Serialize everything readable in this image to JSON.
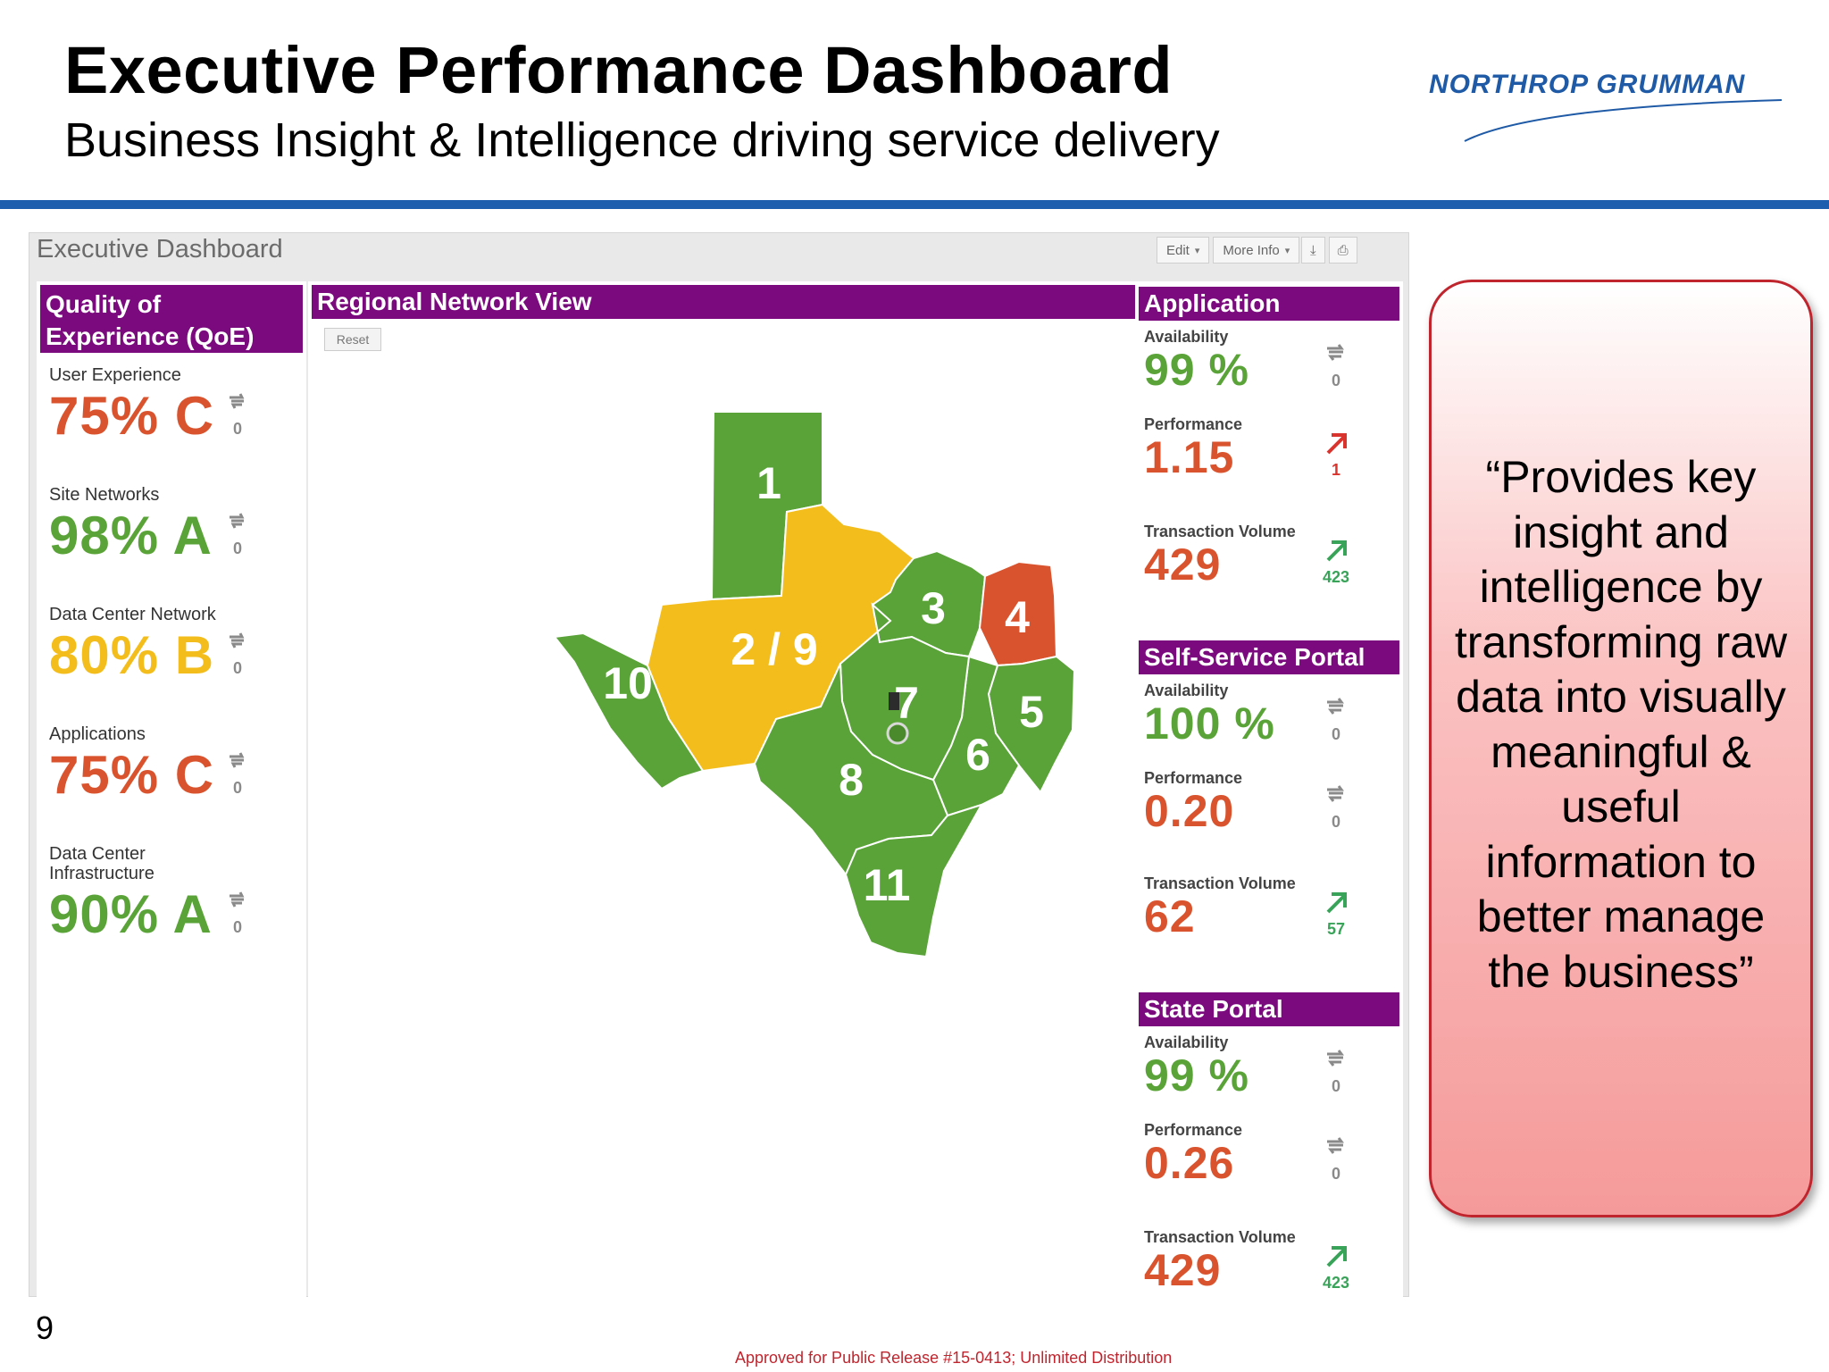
{
  "slide": {
    "title": "Executive Performance Dashboard",
    "subtitle": "Business Insight & Intelligence driving service delivery",
    "logo_text": "NORTHROP GRUMMAN",
    "page_number": "9",
    "release_note": "Approved for Public Release #15-0413; Unlimited Distribution"
  },
  "dashboard": {
    "title": "Executive Dashboard",
    "toolbar": {
      "edit_label": "Edit",
      "more_info_label": "More Info"
    },
    "qoe": {
      "title": "Quality of Experience (QoE)",
      "title_line1": "Quality of",
      "title_line2": "Experience (QoE)",
      "items": [
        {
          "label": "User Experience",
          "value": "75% C",
          "trend": "0",
          "color": "#d9542e"
        },
        {
          "label": "Site Networks",
          "value": "98% A",
          "trend": "0",
          "color": "#5aa338"
        },
        {
          "label": "Data Center Network",
          "value": "80% B",
          "trend": "0",
          "color": "#f3bd1c"
        },
        {
          "label": "Applications",
          "value": "75% C",
          "trend": "0",
          "color": "#d9542e"
        },
        {
          "label": "Data Center Infrastructure",
          "label_line1": "Data Center",
          "label_line2": "Infrastructure",
          "value": "90% A",
          "trend": "0",
          "color": "#5aa338"
        }
      ]
    },
    "regional": {
      "title": "Regional Network View",
      "reset_label": "Reset",
      "regions": [
        {
          "label": "1",
          "status": "green"
        },
        {
          "label": "2 / 9",
          "status": "yellow"
        },
        {
          "label": "3",
          "status": "green"
        },
        {
          "label": "4",
          "status": "red"
        },
        {
          "label": "5",
          "status": "green"
        },
        {
          "label": "6",
          "status": "green"
        },
        {
          "label": "7",
          "status": "green"
        },
        {
          "label": "8",
          "status": "green"
        },
        {
          "label": "10",
          "status": "green"
        },
        {
          "label": "11",
          "status": "green"
        }
      ],
      "colors": {
        "green": "#5aa338",
        "yellow": "#f3bd1c",
        "red": "#d9542e"
      }
    },
    "sections": [
      {
        "title": "Application",
        "metrics": [
          {
            "label": "Availability",
            "value": "99 %",
            "color": "#5aa338",
            "trend": "0",
            "trend_type": "neutral"
          },
          {
            "label": "Performance",
            "value": "1.15",
            "color": "#d9542e",
            "trend": "1",
            "trend_type": "up-red"
          },
          {
            "label": "Transaction Volume",
            "value": "429",
            "color": "#d9542e",
            "trend": "423",
            "trend_type": "up-green"
          }
        ]
      },
      {
        "title": "Self-Service Portal",
        "metrics": [
          {
            "label": "Availability",
            "value": "100 %",
            "color": "#5aa338",
            "trend": "0",
            "trend_type": "neutral"
          },
          {
            "label": "Performance",
            "value": "0.20",
            "color": "#d9542e",
            "trend": "0",
            "trend_type": "neutral"
          },
          {
            "label": "Transaction Volume",
            "value": "62",
            "color": "#d9542e",
            "trend": "57",
            "trend_type": "up-green"
          }
        ]
      },
      {
        "title": "State Portal",
        "metrics": [
          {
            "label": "Availability",
            "value": "99 %",
            "color": "#5aa338",
            "trend": "0",
            "trend_type": "neutral"
          },
          {
            "label": "Performance",
            "value": "0.26",
            "color": "#d9542e",
            "trend": "0",
            "trend_type": "neutral"
          },
          {
            "label": "Transaction Volume",
            "value": "429",
            "color": "#d9542e",
            "trend": "423",
            "trend_type": "up-green"
          }
        ]
      }
    ]
  },
  "callout": {
    "text": "“Provides key insight and intelligence by transforming raw data into visually meaningful & useful information to better manage the business”"
  }
}
